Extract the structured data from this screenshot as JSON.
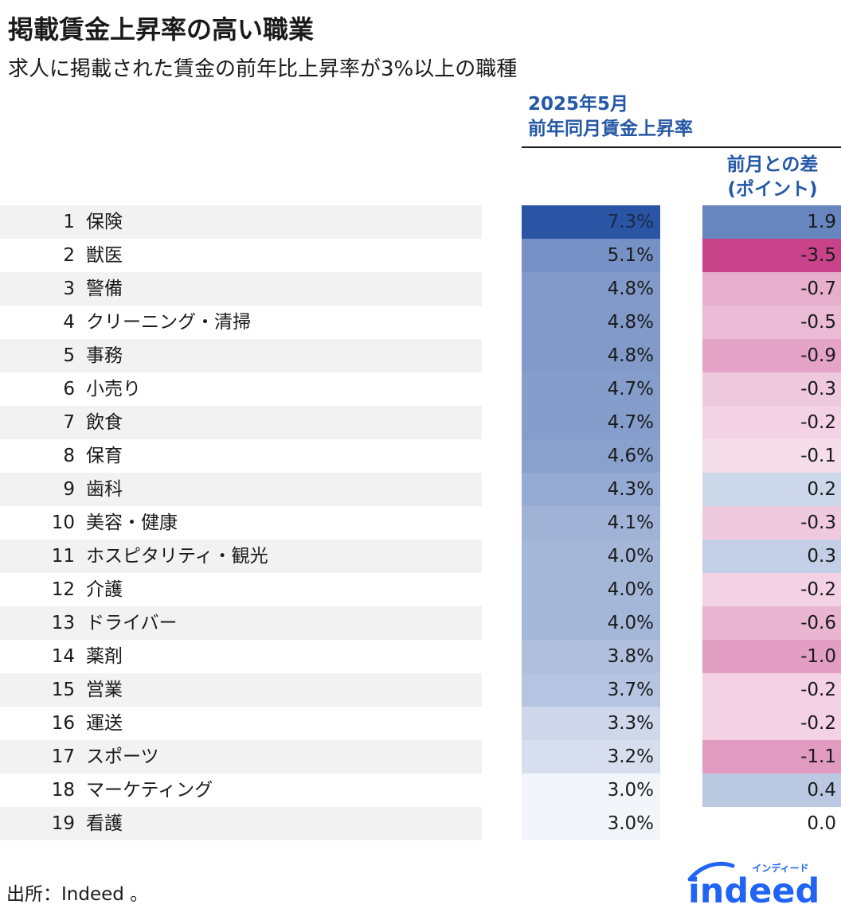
{
  "title": "掲載賃金上昇率の高い職業",
  "subtitle": "求人に掲載された賃金の前年比上昇率が3%以上の職種",
  "column_headers": {
    "wage_growth_line1": "2025年5月",
    "wage_growth_line2": "前年同月賃金上昇率",
    "diff_line1": "前月との差",
    "diff_line2": "(ポイント)"
  },
  "source": "出所：Indeed 。",
  "logo": {
    "small_text": "インディード",
    "word": "indeed"
  },
  "colors": {
    "positive_base": "#2a55a5",
    "negative_base": "#c8438a",
    "logo_blue": "#2164f3",
    "header_blue": "#2457a6",
    "row_shade": "#f2f2f2"
  },
  "chart_data": {
    "type": "table",
    "title": "掲載賃金上昇率の高い職業",
    "columns": [
      "",
      "2025年5月 前年同月賃金上昇率",
      "前月との差 (ポイント)"
    ],
    "rows": [
      {
        "rank": "1",
        "occupation": "保険",
        "growth": 7.3,
        "growth_text": "7.3%",
        "diff": 1.9,
        "diff_text": "1.9"
      },
      {
        "rank": "2",
        "occupation": "獣医",
        "growth": 5.1,
        "growth_text": "5.1%",
        "diff": -3.5,
        "diff_text": "-3.5"
      },
      {
        "rank": "3",
        "occupation": "警備",
        "growth": 4.8,
        "growth_text": "4.8%",
        "diff": -0.7,
        "diff_text": "-0.7"
      },
      {
        "rank": "4",
        "occupation": "クリーニング・清掃",
        "growth": 4.8,
        "growth_text": "4.8%",
        "diff": -0.5,
        "diff_text": "-0.5"
      },
      {
        "rank": "5",
        "occupation": "事務",
        "growth": 4.8,
        "growth_text": "4.8%",
        "diff": -0.9,
        "diff_text": "-0.9"
      },
      {
        "rank": "6",
        "occupation": "小売り",
        "growth": 4.7,
        "growth_text": "4.7%",
        "diff": -0.3,
        "diff_text": "-0.3"
      },
      {
        "rank": "7",
        "occupation": "飲食",
        "growth": 4.7,
        "growth_text": "4.7%",
        "diff": -0.2,
        "diff_text": "-0.2"
      },
      {
        "rank": "8",
        "occupation": "保育",
        "growth": 4.6,
        "growth_text": "4.6%",
        "diff": -0.1,
        "diff_text": "-0.1"
      },
      {
        "rank": "9",
        "occupation": "歯科",
        "growth": 4.3,
        "growth_text": "4.3%",
        "diff": 0.2,
        "diff_text": "0.2"
      },
      {
        "rank": "10",
        "occupation": "美容・健康",
        "growth": 4.1,
        "growth_text": "4.1%",
        "diff": -0.3,
        "diff_text": "-0.3"
      },
      {
        "rank": "11",
        "occupation": "ホスピタリティ・観光",
        "growth": 4.0,
        "growth_text": "4.0%",
        "diff": 0.3,
        "diff_text": "0.3"
      },
      {
        "rank": "12",
        "occupation": "介護",
        "growth": 4.0,
        "growth_text": "4.0%",
        "diff": -0.2,
        "diff_text": "-0.2"
      },
      {
        "rank": "13",
        "occupation": "ドライバー",
        "growth": 4.0,
        "growth_text": "4.0%",
        "diff": -0.6,
        "diff_text": "-0.6"
      },
      {
        "rank": "14",
        "occupation": "薬剤",
        "growth": 3.8,
        "growth_text": "3.8%",
        "diff": -1.0,
        "diff_text": "-1.0"
      },
      {
        "rank": "15",
        "occupation": "営業",
        "growth": 3.7,
        "growth_text": "3.7%",
        "diff": -0.2,
        "diff_text": "-0.2"
      },
      {
        "rank": "16",
        "occupation": "運送",
        "growth": 3.3,
        "growth_text": "3.3%",
        "diff": -0.2,
        "diff_text": "-0.2"
      },
      {
        "rank": "17",
        "occupation": "スポーツ",
        "growth": 3.2,
        "growth_text": "3.2%",
        "diff": -1.1,
        "diff_text": "-1.1"
      },
      {
        "rank": "18",
        "occupation": "マーケティング",
        "growth": 3.0,
        "growth_text": "3.0%",
        "diff": 0.4,
        "diff_text": "0.4"
      },
      {
        "rank": "19",
        "occupation": "看護",
        "growth": 3.0,
        "growth_text": "3.0%",
        "diff": 0.0,
        "diff_text": "0.0"
      }
    ]
  }
}
